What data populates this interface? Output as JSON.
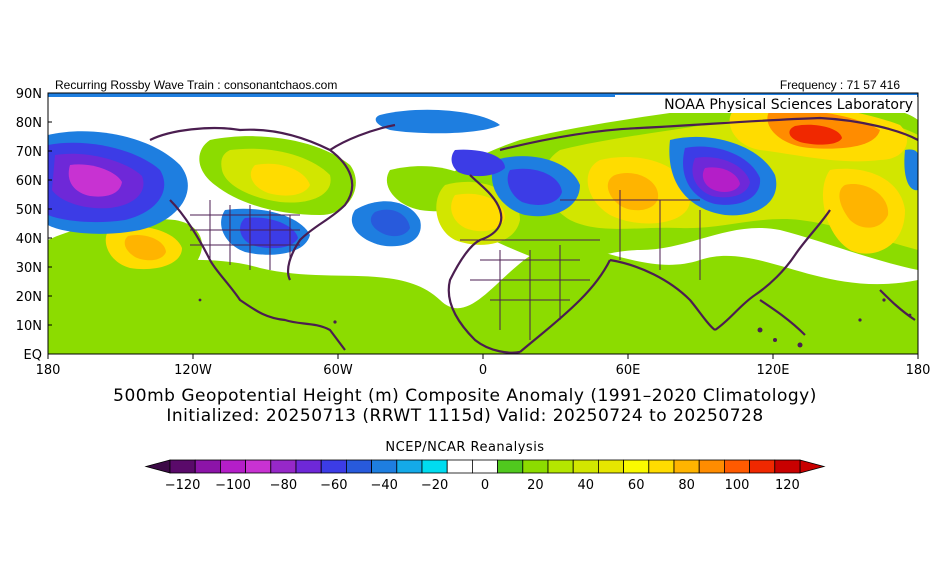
{
  "header": {
    "left": "Recurring Rossby Wave Train : consonantchaos.com",
    "right": "Frequency : 71 57 416",
    "lab": "NOAA Physical Sciences Laboratory"
  },
  "axes": {
    "lat_labels": [
      "90N",
      "80N",
      "70N",
      "60N",
      "50N",
      "40N",
      "30N",
      "20N",
      "10N",
      "EQ"
    ],
    "lon_labels": [
      "180",
      "120W",
      "60W",
      "0",
      "60E",
      "120E",
      "180"
    ]
  },
  "title": {
    "line1": "500mb Geopotential Height (m) Composite Anomaly (1991–2020 Climatology)",
    "line2": "Initialized: 20250713 (RRWT 1115d) Valid: 20250724 to 20250728"
  },
  "source": "NCEP/NCAR Reanalysis",
  "colorbar": {
    "labels": [
      "−120",
      "−100",
      "−80",
      "−60",
      "−40",
      "−20",
      "0",
      "20",
      "40",
      "60",
      "80",
      "100",
      "120"
    ],
    "colors": [
      "#5a0a6a",
      "#8c14a8",
      "#b41ec8",
      "#c832d2",
      "#9628c8",
      "#6e28d8",
      "#3c3ce6",
      "#285adc",
      "#1e7ee0",
      "#14aae8",
      "#00dcf0",
      "#ffffff",
      "#ffffff",
      "#50c81e",
      "#8cdc00",
      "#b4e600",
      "#d2e600",
      "#e6e600",
      "#fafa00",
      "#ffdc00",
      "#ffb400",
      "#ff8c00",
      "#ff5a00",
      "#f02800",
      "#c80000"
    ]
  }
}
